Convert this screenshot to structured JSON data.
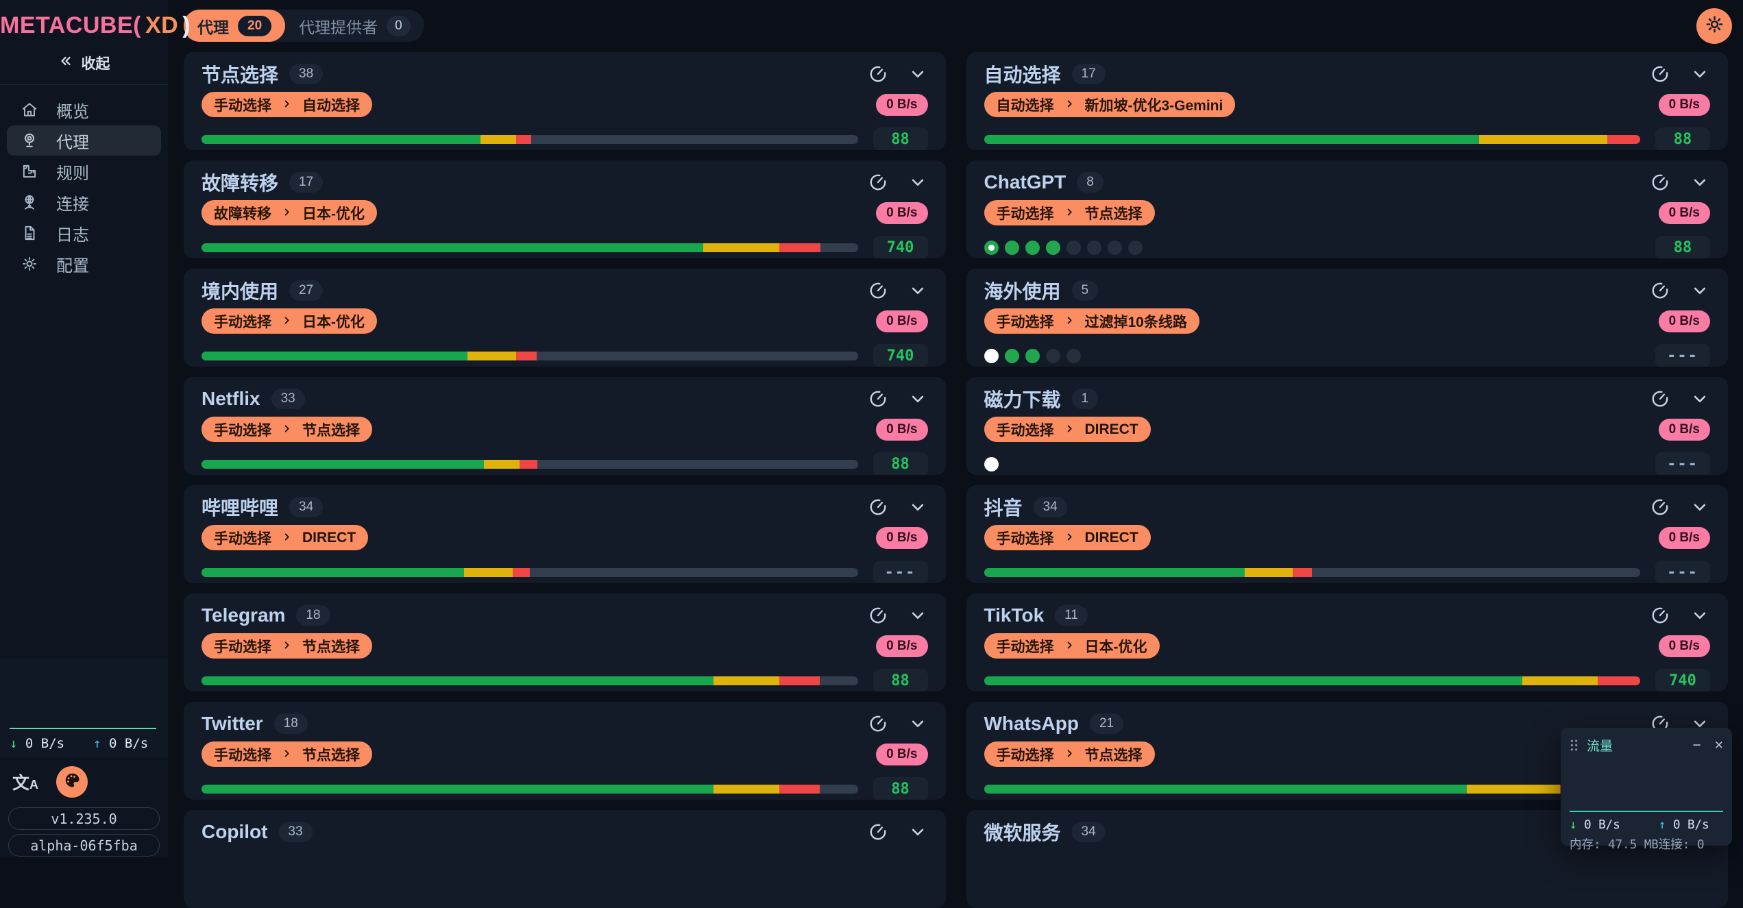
{
  "sidebar": {
    "logo": {
      "part1": "METACUBE(",
      "part2": "XD",
      "part3": ")"
    },
    "collapse_label": "收起",
    "collapse_icon": "chevrons-left-icon",
    "items": [
      {
        "id": "overview",
        "label": "概览",
        "icon": "home-icon",
        "active": false
      },
      {
        "id": "proxies",
        "label": "代理",
        "icon": "globe-icon",
        "active": true
      },
      {
        "id": "rules",
        "label": "规则",
        "icon": "ruler-icon",
        "active": false
      },
      {
        "id": "connections",
        "label": "连接",
        "icon": "network-icon",
        "active": false
      },
      {
        "id": "logs",
        "label": "日志",
        "icon": "document-icon",
        "active": false
      },
      {
        "id": "config",
        "label": "配置",
        "icon": "gear-icon",
        "active": false
      }
    ],
    "traffic": {
      "down": "0 B/s",
      "up": "0 B/s"
    },
    "tools": {
      "language_glyph_main": "文",
      "language_glyph_sub": "A",
      "theme_icon": "palette-icon"
    },
    "version": "v1.235.0",
    "build": "alpha-06f5fba"
  },
  "tabs": [
    {
      "label": "代理",
      "count": "20",
      "active": true
    },
    {
      "label": "代理提供者",
      "count": "0",
      "active": false
    }
  ],
  "card_action_icons": {
    "test": "speedometer-icon",
    "expand": "chevron-down-icon"
  },
  "cards": [
    {
      "title": "节点选择",
      "count": "38",
      "selector": {
        "from": "手动选择",
        "to": "自动选择"
      },
      "speed": "0 B/s",
      "latency": "88",
      "bar": {
        "green": 42.5,
        "yellow": 5.4,
        "red": 2.3
      },
      "dots": null
    },
    {
      "title": "自动选择",
      "count": "17",
      "selector": {
        "from": "自动选择",
        "to": "新加坡-优化3-Gemini"
      },
      "speed": "0 B/s",
      "latency": "88",
      "bar": {
        "green": 75.5,
        "yellow": 19.5,
        "red": 5.0
      },
      "dots": null
    },
    {
      "title": "故障转移",
      "count": "17",
      "selector": {
        "from": "故障转移",
        "to": "日本-优化"
      },
      "speed": "0 B/s",
      "latency": "740",
      "bar": {
        "green": 76.5,
        "yellow": 11.5,
        "red": 6.3
      },
      "dots": null
    },
    {
      "title": "ChatGPT",
      "count": "8",
      "selector": {
        "from": "手动选择",
        "to": "节点选择"
      },
      "speed": "0 B/s",
      "latency": "88",
      "bar": null,
      "dots": [
        "selected",
        "green",
        "green",
        "green",
        "empty",
        "empty",
        "empty",
        "empty"
      ]
    },
    {
      "title": "境内使用",
      "count": "27",
      "selector": {
        "from": "手动选择",
        "to": "日本-优化"
      },
      "speed": "0 B/s",
      "latency": "740",
      "bar": {
        "green": 40.5,
        "yellow": 7.4,
        "red": 3.2
      },
      "dots": null
    },
    {
      "title": "海外使用",
      "count": "5",
      "selector": {
        "from": "手动选择",
        "to": "过滤掉10条线路"
      },
      "speed": "0 B/s",
      "latency": "---",
      "bar": null,
      "dots": [
        "white",
        "green",
        "green",
        "empty",
        "empty"
      ]
    },
    {
      "title": "Netflix",
      "count": "33",
      "selector": {
        "from": "手动选择",
        "to": "节点选择"
      },
      "speed": "0 B/s",
      "latency": "88",
      "bar": {
        "green": 43.0,
        "yellow": 5.5,
        "red": 2.7
      },
      "dots": null
    },
    {
      "title": "磁力下载",
      "count": "1",
      "selector": {
        "from": "手动选择",
        "to": "DIRECT"
      },
      "speed": "0 B/s",
      "latency": "---",
      "bar": null,
      "dots": [
        "white"
      ]
    },
    {
      "title": "哔哩哔哩",
      "count": "34",
      "selector": {
        "from": "手动选择",
        "to": "DIRECT"
      },
      "speed": "0 B/s",
      "latency": "---",
      "bar": {
        "green": 40.0,
        "yellow": 7.4,
        "red": 2.6
      },
      "dots": null
    },
    {
      "title": "抖音",
      "count": "34",
      "selector": {
        "from": "手动选择",
        "to": "DIRECT"
      },
      "speed": "0 B/s",
      "latency": "---",
      "bar": {
        "green": 39.7,
        "yellow": 7.3,
        "red": 3.0
      },
      "dots": null
    },
    {
      "title": "Telegram",
      "count": "18",
      "selector": {
        "from": "手动选择",
        "to": "节点选择"
      },
      "speed": "0 B/s",
      "latency": "88",
      "bar": {
        "green": 78.0,
        "yellow": 10.0,
        "red": 6.2
      },
      "dots": null
    },
    {
      "title": "TikTok",
      "count": "11",
      "selector": {
        "from": "手动选择",
        "to": "日本-优化"
      },
      "speed": "0 B/s",
      "latency": "740",
      "bar": {
        "green": 82.0,
        "yellow": 11.5,
        "red": 6.5
      },
      "dots": null
    },
    {
      "title": "Twitter",
      "count": "18",
      "selector": {
        "from": "手动选择",
        "to": "节点选择"
      },
      "speed": "0 B/s",
      "latency": "88",
      "bar": {
        "green": 78.0,
        "yellow": 10.0,
        "red": 6.2
      },
      "dots": null
    },
    {
      "title": "WhatsApp",
      "count": "21",
      "selector": {
        "from": "手动选择",
        "to": "节点选择"
      },
      "speed": null,
      "latency": null,
      "bar": {
        "green": 66.5,
        "yellow": 12.8,
        "red": 5.5
      },
      "dots": null
    },
    {
      "title": "Copilot",
      "count": "33",
      "selector": null,
      "speed": null,
      "latency": null,
      "bar": null,
      "dots": null
    },
    {
      "title": "微软服务",
      "count": "34",
      "selector": null,
      "speed": null,
      "latency": null,
      "bar": null,
      "dots": null
    }
  ],
  "panel": {
    "drag_icon": "drag-handle-icon",
    "title": "流量",
    "minimize_glyph": "−",
    "close_glyph": "×",
    "down": "0 B/s",
    "up": "0 B/s",
    "memory_label": "内存:",
    "memory": "47.5 MB",
    "conn_label": "连接:",
    "conn": "0"
  },
  "colors": {
    "accent_orange": "#fb8d62",
    "badge_pink": "#fa7ba3",
    "latency_green": "#23c55e",
    "bar_green": "#18a74c",
    "bar_yellow": "#dfb30c",
    "bar_red": "#ee4545",
    "panel_teal": "#2fd4b2",
    "logo_pink": "#f8719c",
    "logo_orange": "#fb9058"
  }
}
